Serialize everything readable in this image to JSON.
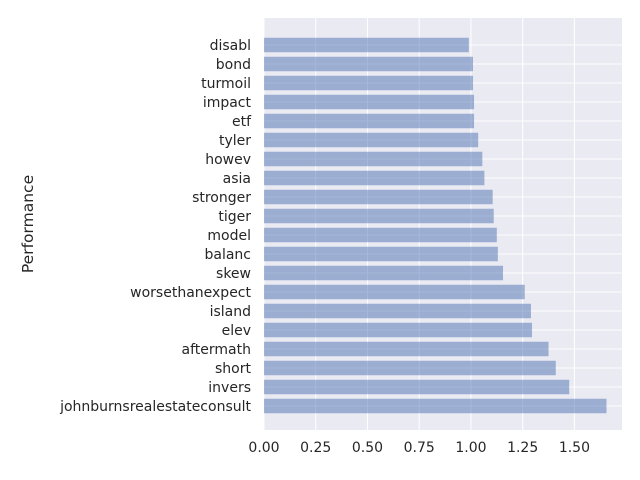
{
  "colors": {
    "plot_background": "#eaeaf2",
    "grid": "#ffffff",
    "bar": "#4c72b0",
    "text": "#262626"
  },
  "chart_data": {
    "type": "bar",
    "orientation": "horizontal",
    "title": "",
    "xlabel": "",
    "ylabel": "Performance",
    "categories": [
      "disabl",
      "bond",
      "turmoil",
      "impact",
      "etf",
      "tyler",
      "howev",
      "asia",
      "stronger",
      "tiger",
      "model",
      "balanc",
      "skew",
      "worsethanexpect",
      "island",
      "elev",
      "aftermath",
      "short",
      "invers",
      "johnburnsrealestateconsult"
    ],
    "values": [
      0.99,
      1.01,
      1.01,
      1.015,
      1.015,
      1.035,
      1.055,
      1.065,
      1.105,
      1.11,
      1.125,
      1.13,
      1.155,
      1.26,
      1.29,
      1.295,
      1.375,
      1.41,
      1.475,
      1.655
    ],
    "xlim": [
      0,
      1.73
    ],
    "xticks": [
      0.0,
      0.25,
      0.5,
      0.75,
      1.0,
      1.25,
      1.5
    ],
    "xtick_labels": [
      "0.00",
      "0.25",
      "0.50",
      "0.75",
      "1.00",
      "1.25",
      "1.50"
    ],
    "grid": true,
    "legend": "none",
    "bar_opacity": 0.5
  }
}
